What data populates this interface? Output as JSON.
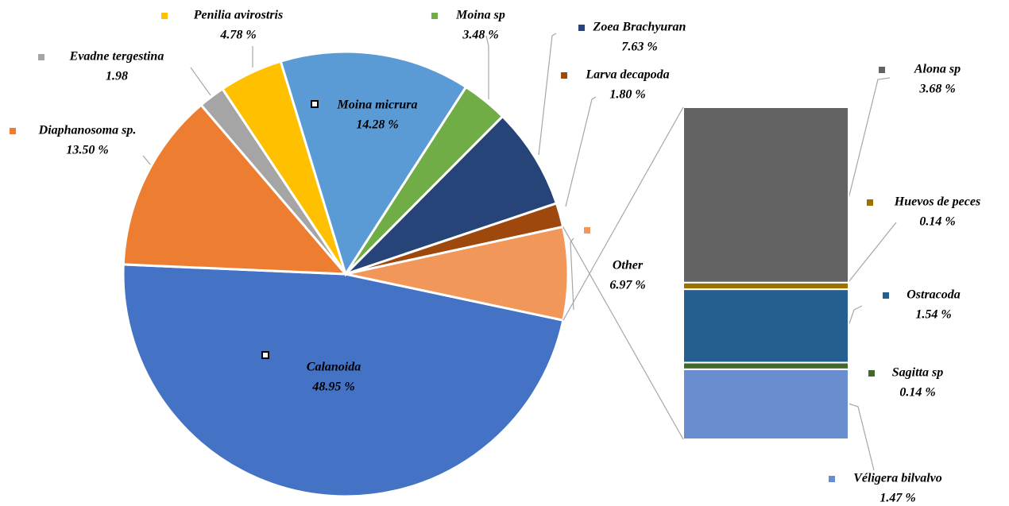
{
  "chart_data": {
    "type": "pie-of-bar",
    "categories": [
      "Calanoida",
      "Diaphanosoma sp.",
      "Evadne tergestina",
      "Penilia avirostris",
      "Moina micrura",
      "Moina sp",
      "Zoea Brachyuran",
      "Larva decapoda",
      "Other"
    ],
    "values": [
      48.95,
      13.5,
      1.98,
      4.78,
      14.28,
      3.48,
      7.63,
      1.8,
      6.97
    ],
    "value_labels": [
      "48.95  %",
      "13.50  %",
      "1.98",
      "4.78 %",
      "14.28  %",
      "3.48 %",
      "7.63 %",
      "1.80 %",
      "6.97 %"
    ],
    "colors": [
      "#4472c4",
      "#ed7d31",
      "#a5a5a5",
      "#ffc000",
      "#5b9bd5",
      "#70ad47",
      "#264478",
      "#9e480e",
      "#f1975a"
    ],
    "bar": {
      "categories": [
        "Véligera bilvalvo",
        "Sagitta sp",
        "Ostracoda",
        "Huevos de peces",
        "Alona sp"
      ],
      "values": [
        1.47,
        0.14,
        1.54,
        0.14,
        3.68
      ],
      "value_labels": [
        "1.47 %",
        "0.14 %",
        "1.54 %",
        "0.14 %",
        "3.68 %"
      ],
      "colors": [
        "#698ed0",
        "#43682b",
        "#255e91",
        "#997300",
        "#636363"
      ]
    }
  }
}
